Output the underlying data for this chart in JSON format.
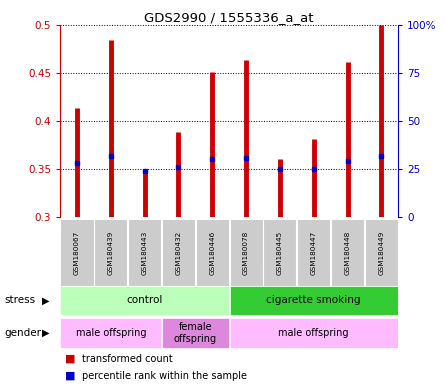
{
  "title": "GDS2990 / 1555336_a_at",
  "samples": [
    "GSM180067",
    "GSM180439",
    "GSM180443",
    "GSM180432",
    "GSM180446",
    "GSM180078",
    "GSM180445",
    "GSM180447",
    "GSM180448",
    "GSM180449"
  ],
  "red_values": [
    0.414,
    0.484,
    0.348,
    0.388,
    0.451,
    0.464,
    0.36,
    0.381,
    0.461,
    0.5
  ],
  "blue_values": [
    0.356,
    0.363,
    0.348,
    0.352,
    0.36,
    0.361,
    0.35,
    0.35,
    0.358,
    0.363
  ],
  "ylim": [
    0.3,
    0.5
  ],
  "yticks": [
    0.3,
    0.35,
    0.4,
    0.45,
    0.5
  ],
  "ytick_labels": [
    "0.3",
    "0.35",
    "0.4",
    "0.45",
    "0.5"
  ],
  "right_yticks": [
    0,
    25,
    50,
    75,
    100
  ],
  "right_ytick_labels": [
    "0",
    "25",
    "50",
    "75",
    "100%"
  ],
  "bar_color": "#cc0000",
  "dot_color": "#0000cc",
  "tick_color_left": "#cc0000",
  "tick_color_right": "#0000cc",
  "stress_light": "#bbffbb",
  "stress_dark": "#33cc33",
  "gender_light": "#ffbbff",
  "gender_mid": "#dd88dd",
  "sample_box_color": "#cccccc"
}
